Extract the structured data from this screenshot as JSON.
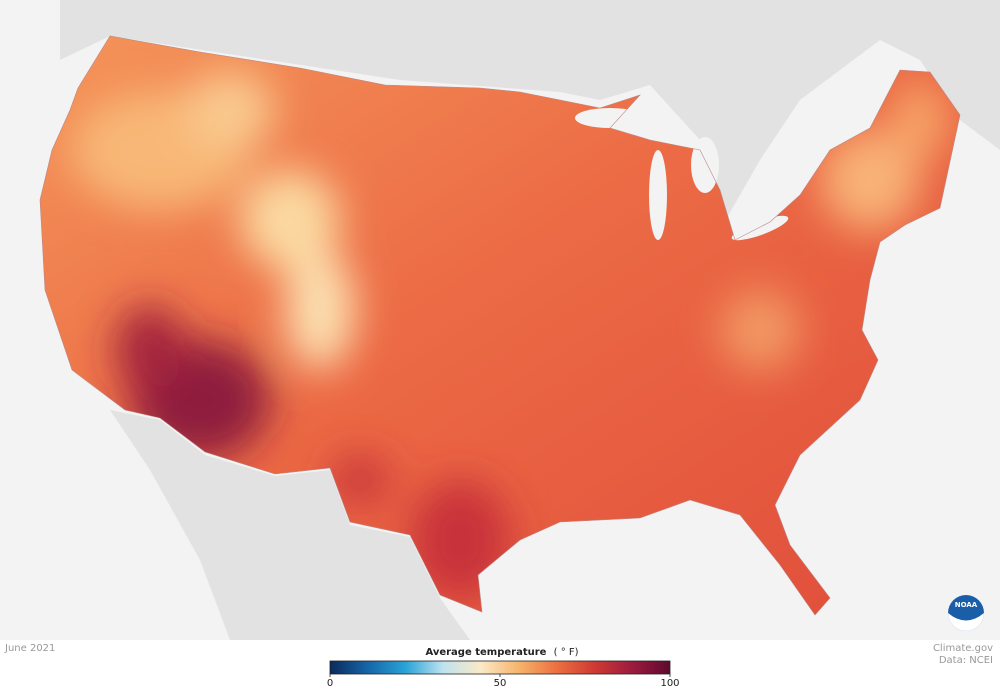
{
  "map": {
    "date": "June 2021",
    "logo_text": "NOAA",
    "legend": {
      "title": "Average temperature",
      "unit": "( ° F)",
      "range": [
        0,
        100
      ],
      "ticks": [
        0,
        50,
        100
      ],
      "colors": [
        "#0b2a5b",
        "#1665a8",
        "#29a3d8",
        "#bfe3ef",
        "#fbe9c6",
        "#f6b46b",
        "#ec7040",
        "#cf3a34",
        "#9c1b3e",
        "#5e0a2f"
      ]
    },
    "credits": {
      "source": "Climate.gov",
      "data": "Data: NCEI"
    }
  }
}
